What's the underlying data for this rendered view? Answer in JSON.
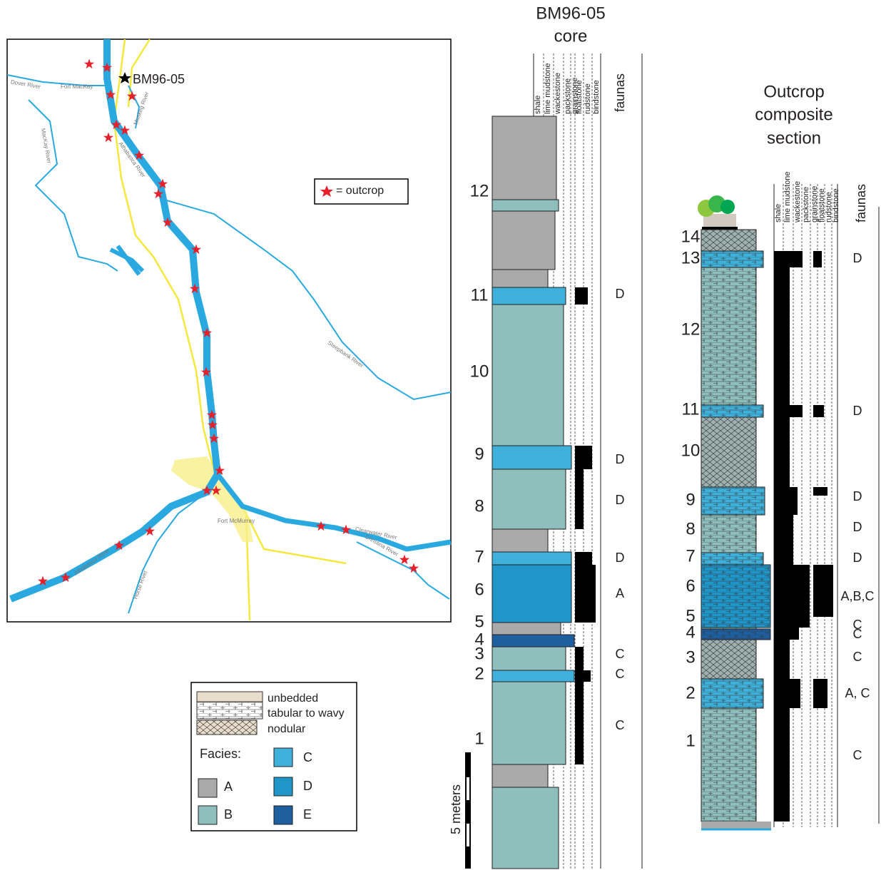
{
  "map": {
    "well_label": "BM96-05",
    "legend_label": "= outcrop",
    "place_labels": [
      "Dover River",
      "Fort MacKay",
      "MacKay River",
      "Muskeg River",
      "Athabasca River",
      "Steepbank River",
      "Fort McMurray",
      "Clearwater River",
      "Christina River",
      "Athabasca River",
      "Horse River"
    ]
  },
  "core": {
    "title_lines": [
      "BM96-05",
      "core"
    ],
    "texture_labels": [
      "shale",
      "lime mudstone",
      "wackestone",
      "packstone",
      "grainstone",
      "floatstone",
      "rudstone",
      "bindstone"
    ],
    "faunas_header": "faunas",
    "unit_labels": [
      "12",
      "11",
      "10",
      "9",
      "8",
      "7",
      "6",
      "5",
      "4",
      "3",
      "2",
      "1"
    ],
    "fauna_labels": [
      "D",
      "D",
      "D",
      "D",
      "A",
      "C",
      "C",
      "C"
    ],
    "scale_label": "5 meters"
  },
  "outcrop": {
    "title_lines": [
      "Outcrop",
      "composite",
      "section"
    ],
    "texture_labels": [
      "shale",
      "lime mudstone",
      "wackestone",
      "packstone",
      "grainstone",
      "floatstone",
      "rudstone",
      "bindstone"
    ],
    "faunas_header": "faunas",
    "unit_labels": [
      "14",
      "13",
      "12",
      "11",
      "10",
      "9",
      "8",
      "7",
      "6",
      "5",
      "4",
      "3",
      "2",
      "1"
    ],
    "fauna_labels": [
      "D",
      "D",
      "D",
      "D",
      "D",
      "A,B,C",
      "C",
      "C",
      "C",
      "A, C",
      "C"
    ]
  },
  "legend": {
    "bedding_labels": [
      "unbedded",
      "tabular to wavy",
      "nodular"
    ],
    "facies_title": "Facies:",
    "facies_labels": [
      "A",
      "B",
      "C",
      "D",
      "E"
    ]
  }
}
